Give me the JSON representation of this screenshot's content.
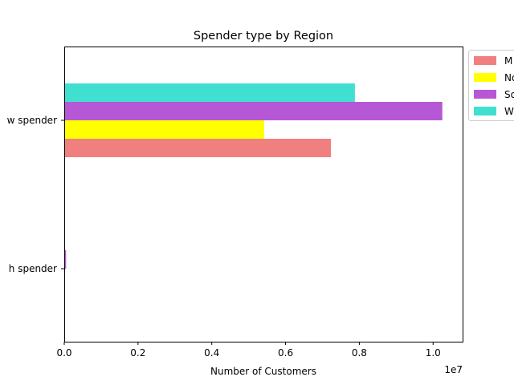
{
  "chart_data": {
    "type": "bar",
    "orientation": "horizontal",
    "grouping": "clustered",
    "title": "Spender type by Region",
    "xlabel": "Number of Customers",
    "ylabel": "",
    "x_scale_label": "1e7",
    "xlim": [
      0,
      1.08
    ],
    "x_ticks": [
      0.0,
      0.2,
      0.4,
      0.6,
      0.8,
      1.0
    ],
    "x_tick_labels": [
      "0.0",
      "0.2",
      "0.4",
      "0.6",
      "0.8",
      "1.0"
    ],
    "categories": [
      "Low spender",
      "High spender"
    ],
    "category_labels": [
      "w spender",
      "h spender"
    ],
    "series": [
      {
        "name": "M",
        "color": "#f08080",
        "values": [
          0.723,
          0.0
        ]
      },
      {
        "name": "No",
        "color": "#ffff00",
        "values": [
          0.542,
          0.0
        ]
      },
      {
        "name": "So",
        "color": "#b657d6",
        "values": [
          1.025,
          0.005
        ]
      },
      {
        "name": "W",
        "color": "#40e0d0",
        "values": [
          0.788,
          0.0
        ]
      }
    ],
    "grid": false,
    "legend_position": "outside-right"
  }
}
